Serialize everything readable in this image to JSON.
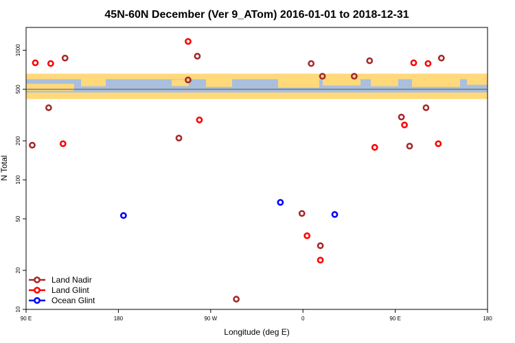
{
  "chart_data": {
    "type": "scatter",
    "title": "45N-60N December (Ver 9_ATom)   2016-01-01 to 2018-12-31",
    "xlabel": "Longitude (deg E)",
    "ylabel": "N Total",
    "x_scale": "linear",
    "y_scale": "log",
    "xlim": [
      90,
      450
    ],
    "ylim": [
      10,
      1500
    ],
    "x_ticks": [
      {
        "value": 90,
        "label": "90 E"
      },
      {
        "value": 180,
        "label": "180"
      },
      {
        "value": 270,
        "label": "90 W"
      },
      {
        "value": 360,
        "label": "0"
      },
      {
        "value": 450,
        "label": "90 E"
      },
      {
        "value": 540,
        "label": "180"
      }
    ],
    "y_ticks": [
      10,
      20,
      50,
      100,
      200,
      500,
      1000
    ],
    "reference_line_y": 500,
    "map_band": {
      "ylow": 420,
      "yhigh": 660,
      "land_color": "#ffd97a",
      "ocean_color": "#a9bfdd"
    },
    "grid": false,
    "legend_position": "bottom-left",
    "series": [
      {
        "name": "Land Nadir",
        "color": "#a52a2a",
        "points": [
          [
            96,
            185
          ],
          [
            112,
            360
          ],
          [
            128,
            870
          ],
          [
            239,
            210
          ],
          [
            248,
            590
          ],
          [
            257,
            900
          ],
          [
            295,
            12
          ],
          [
            359,
            55
          ],
          [
            377,
            31
          ],
          [
            410,
            630
          ],
          [
            425,
            830
          ],
          [
            456,
            305
          ],
          [
            464,
            182
          ],
          [
            480,
            360
          ],
          [
            495,
            870
          ],
          [
            379,
            630
          ],
          [
            368,
            790
          ]
        ]
      },
      {
        "name": "Land Glint",
        "color": "#ff0000",
        "points": [
          [
            99,
            800
          ],
          [
            114,
            790
          ],
          [
            126,
            190
          ],
          [
            248,
            1170
          ],
          [
            259,
            290
          ],
          [
            364,
            37
          ],
          [
            377,
            24
          ],
          [
            430,
            178
          ],
          [
            459,
            265
          ],
          [
            468,
            800
          ],
          [
            482,
            790
          ],
          [
            492,
            190
          ]
        ]
      },
      {
        "name": "Ocean Glint",
        "color": "#0000ff",
        "points": [
          [
            185,
            53
          ],
          [
            338,
            67
          ],
          [
            391,
            54
          ]
        ]
      }
    ]
  }
}
